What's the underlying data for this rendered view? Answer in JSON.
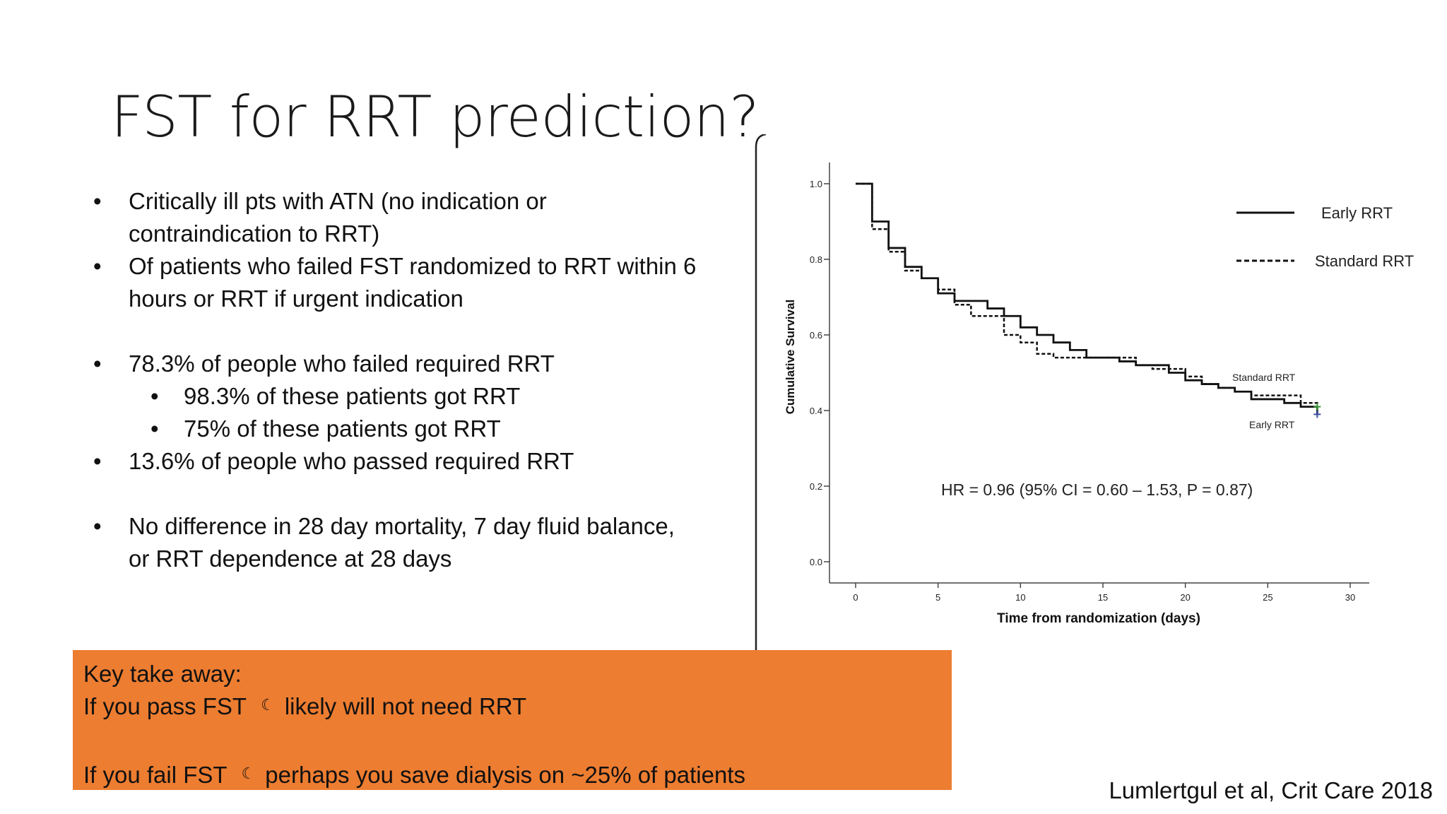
{
  "slide": {
    "title": "FST for RRT prediction?",
    "bullets": [
      {
        "level": 1,
        "lines": [
          "Critically ill pts with ATN (no indication or",
          "contraindication to RRT)"
        ]
      },
      {
        "level": 1,
        "lines": [
          "Of patients who failed FST randomized to RRT within 6",
          "hours or RRT if urgent indication"
        ]
      },
      {
        "level": 1,
        "lines": [
          "78.3% of people who failed required RRT"
        ]
      },
      {
        "level": 2,
        "lines": [
          "98.3% of these patients got RRT"
        ]
      },
      {
        "level": 2,
        "lines": [
          "75% of these patients got RRT"
        ]
      },
      {
        "level": 1,
        "lines": [
          "13.6% of people who passed required RRT"
        ]
      },
      {
        "level": 1,
        "lines": [
          "No difference in 28 day mortality, 7 day fluid balance,",
          "or RRT dependence at 28 days"
        ]
      }
    ],
    "takeaway": {
      "heading": "Key take away:",
      "line1_a": "If you pass FST",
      "line1_b": "likely will not need RRT",
      "line2_a": "If you fail FST",
      "line2_b": "perhaps you save dialysis on ~25% of patients",
      "arrow_glyph": "☾",
      "arrow_icon": "moon-arrow-icon",
      "background_color": "#ed7d31"
    },
    "citation": "Lumlertgul et al, Crit Care 2018"
  },
  "chart_data": {
    "type": "line",
    "xlabel": "Time from randomization (days)",
    "ylabel": "Cumulative Survival",
    "xlim": [
      0,
      30
    ],
    "ylim": [
      0,
      1
    ],
    "xticks": [
      0,
      5,
      10,
      15,
      20,
      25,
      30
    ],
    "yticks": [
      0.0,
      0.2,
      0.4,
      0.6,
      0.8,
      1.0
    ],
    "ytick_labels": [
      "0.0",
      "0.2",
      "0.4",
      "0.6",
      "0.8",
      "1.0"
    ],
    "legend_position": "top-right",
    "annotation": "HR = 0.96 (95% CI = 0.60 – 1.53, P = 0.87)",
    "series": [
      {
        "name": "Early RRT",
        "style": "solid",
        "end_label": "Early RRT",
        "x": [
          0,
          1,
          2,
          3,
          4,
          5,
          6,
          8,
          9,
          10,
          11,
          12,
          13,
          14,
          15,
          16,
          17,
          19,
          20,
          21,
          22,
          23,
          24,
          25,
          26,
          27,
          28
        ],
        "y": [
          1.0,
          0.9,
          0.83,
          0.78,
          0.75,
          0.71,
          0.69,
          0.67,
          0.65,
          0.62,
          0.6,
          0.58,
          0.56,
          0.54,
          0.54,
          0.53,
          0.52,
          0.5,
          0.48,
          0.47,
          0.46,
          0.45,
          0.43,
          0.43,
          0.42,
          0.41,
          0.39
        ]
      },
      {
        "name": "Standard RRT",
        "style": "dashed",
        "end_label": "Standard RRT",
        "x": [
          0,
          1,
          2,
          3,
          4,
          5,
          6,
          7,
          9,
          10,
          11,
          12,
          14,
          16,
          17,
          18,
          19,
          20,
          21,
          22,
          23,
          24,
          25,
          27,
          28
        ],
        "y": [
          1.0,
          0.88,
          0.82,
          0.77,
          0.75,
          0.72,
          0.68,
          0.65,
          0.6,
          0.58,
          0.55,
          0.54,
          0.54,
          0.54,
          0.52,
          0.51,
          0.51,
          0.49,
          0.47,
          0.46,
          0.45,
          0.44,
          0.44,
          0.42,
          0.41
        ]
      }
    ]
  }
}
